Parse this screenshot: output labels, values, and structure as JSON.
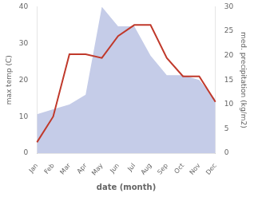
{
  "chart_data": {
    "type": "line",
    "categories": [
      "Jan",
      "Feb",
      "Mar",
      "Apr",
      "May",
      "Jun",
      "Jul",
      "Aug",
      "Sep",
      "Oct",
      "Nov",
      "Dec"
    ],
    "xlabel": "date (month)",
    "ylabel": "max temp (C)",
    "y2label": "med. precipitation (kg/m2)",
    "series": [
      {
        "type": "area",
        "color": "#c5cce8",
        "axis": "y2",
        "values": [
          8,
          9,
          10,
          12,
          30,
          26,
          26,
          20,
          16,
          16,
          15,
          11
        ]
      },
      {
        "type": "line",
        "color": "#c0392b",
        "values": [
          3,
          10,
          27,
          27,
          26,
          32,
          35,
          35,
          26,
          21,
          21,
          14
        ]
      }
    ],
    "ylim": [
      0,
      40
    ],
    "yticks": [
      0,
      10,
      20,
      30,
      40
    ],
    "y2lim": [
      0,
      30
    ],
    "y2ticks": [
      0,
      5,
      10,
      15,
      20,
      25,
      30
    ],
    "grid": false
  }
}
